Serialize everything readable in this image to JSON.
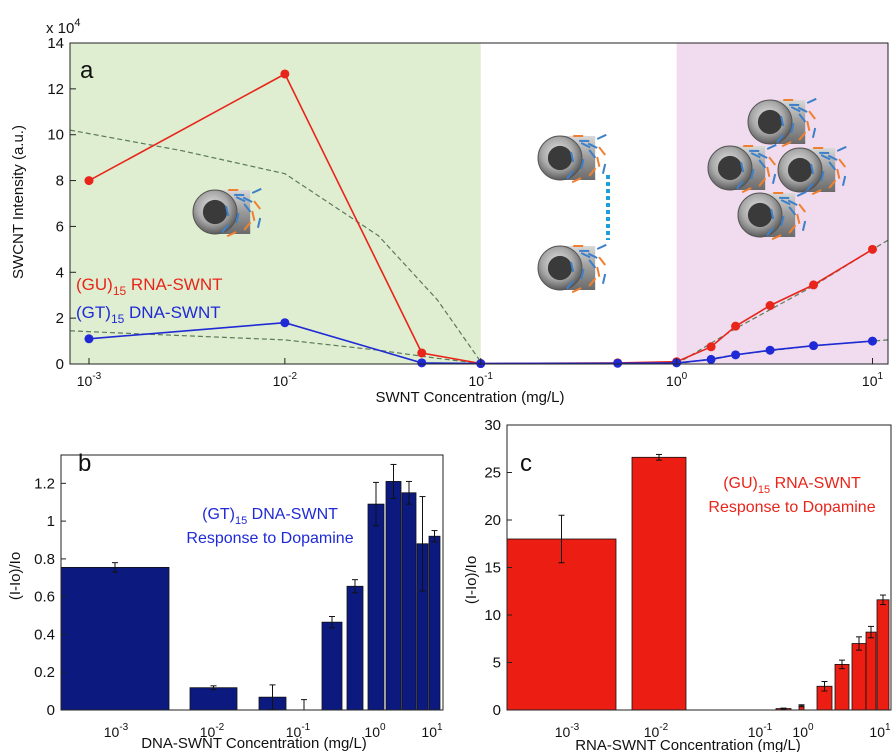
{
  "chart_data": [
    {
      "panel": "a",
      "type": "line",
      "exponent_label": "x 10",
      "exponent_power": "4",
      "xlabel": "SWNT Concentration (mg/L)",
      "ylabel": "SWCNT Intensity (a.u.)",
      "xscale": "log",
      "xlim": [
        0.0008,
        12
      ],
      "ylim": [
        0,
        14
      ],
      "yticks": [
        "0",
        "2",
        "4",
        "6",
        "8",
        "10",
        "12",
        "14"
      ],
      "xticks": [
        {
          "base": "10",
          "exp": "-3",
          "value": 0.001
        },
        {
          "base": "10",
          "exp": "-2",
          "value": 0.01
        },
        {
          "base": "10",
          "exp": "-1",
          "value": 0.1
        },
        {
          "base": "10",
          "exp": "0",
          "value": 1
        },
        {
          "base": "10",
          "exp": "1",
          "value": 10
        }
      ],
      "regions": [
        {
          "from": 0.0008,
          "to": 0.1,
          "color": "#dfeed0"
        },
        {
          "from": 1,
          "to": 12,
          "color": "#f0dcee"
        }
      ],
      "series": [
        {
          "name_main": "(GU)",
          "name_sub": "15",
          "name_rest": " RNA-SWNT",
          "color": "#e8251b",
          "x": [
            0.001,
            0.01,
            0.05,
            0.1,
            0.5,
            1,
            1.5,
            2,
            3,
            5,
            10
          ],
          "y": [
            8.0,
            12.65,
            0.48,
            0.02,
            0.05,
            0.1,
            0.75,
            1.65,
            2.55,
            3.45,
            5.0
          ]
        },
        {
          "name_main": "(GT)",
          "name_sub": "15",
          "name_rest": " DNA-SWNT",
          "color": "#1f2ad6",
          "x": [
            0.001,
            0.01,
            0.05,
            0.1,
            0.5,
            1,
            1.5,
            2,
            3,
            5,
            10
          ],
          "y": [
            1.1,
            1.8,
            0.05,
            0.02,
            0.03,
            0.05,
            0.2,
            0.4,
            0.6,
            0.8,
            1.0
          ]
        }
      ],
      "dashed_curves": [
        {
          "color": "#5c7a5c",
          "x": [
            0.0008,
            0.001,
            0.003,
            0.01,
            0.03,
            0.06,
            0.1
          ],
          "y": [
            10.2,
            10.05,
            9.3,
            8.3,
            5.6,
            2.8,
            0.1
          ]
        },
        {
          "color": "#5c7a5c",
          "x": [
            0.0008,
            0.002,
            0.01,
            0.03,
            0.06,
            0.1
          ],
          "y": [
            1.45,
            1.3,
            1.05,
            0.6,
            0.25,
            0.02
          ]
        },
        {
          "color": "#5c7a5c",
          "x": [
            1,
            2,
            5,
            10,
            12
          ],
          "y": [
            0.0,
            1.55,
            3.4,
            5.0,
            5.4
          ]
        },
        {
          "color": "#5c7a5c",
          "x": [
            1,
            2,
            5,
            10,
            12
          ],
          "y": [
            0.0,
            0.4,
            0.8,
            1.0,
            1.05
          ]
        }
      ]
    },
    {
      "panel": "b",
      "type": "bar",
      "title_main": "(GT)",
      "title_sub": "15",
      "title_rest": " DNA-SWNT",
      "title_line2": "Response to Dopamine",
      "title_color": "#1f2ad6",
      "bar_color": "#0c1a80",
      "xlabel": "DNA-SWNT Concentration (mg/L)",
      "ylabel": "(I-Io)/Io",
      "xscale": "log",
      "ylim": [
        0,
        1.35
      ],
      "yticks": [
        "0",
        "0.2",
        "0.4",
        "0.6",
        "0.8",
        "1",
        "1.2"
      ],
      "xticks": [
        {
          "base": "10",
          "exp": "-3",
          "value": 0.001
        },
        {
          "base": "10",
          "exp": "-2",
          "value": 0.01
        },
        {
          "base": "10",
          "exp": "-1",
          "value": 0.1
        },
        {
          "base": "10",
          "exp": "0",
          "value": 1
        },
        {
          "base": "10",
          "exp": "1",
          "value": 10
        }
      ],
      "x": [
        0.001,
        0.01,
        0.05,
        0.1,
        0.5,
        1,
        1.5,
        2,
        3,
        5,
        10
      ],
      "values": [
        0.755,
        0.118,
        0.068,
        0.0,
        0.465,
        0.655,
        1.09,
        1.21,
        1.15,
        0.88,
        0.92
      ],
      "errors": [
        0.025,
        0.01,
        0.065,
        0.055,
        0.03,
        0.035,
        0.115,
        0.09,
        0.06,
        0.25,
        0.03
      ]
    },
    {
      "panel": "c",
      "type": "bar",
      "title_main": "(GU)",
      "title_sub": "15",
      "title_rest": " RNA-SWNT",
      "title_line2": "Response to Dopamine",
      "title_color": "#e8251b",
      "bar_color": "#ec1e14",
      "xlabel": "RNA-SWNT Concentration (mg/L)",
      "ylabel": "(I-Io)/Io",
      "xscale": "log",
      "ylim": [
        0,
        30
      ],
      "yticks": [
        "0",
        "5",
        "10",
        "15",
        "20",
        "25",
        "30"
      ],
      "xticks": [
        {
          "base": "10",
          "exp": "-3",
          "value": 0.001
        },
        {
          "base": "10",
          "exp": "-2",
          "value": 0.01
        },
        {
          "base": "10",
          "exp": "-1",
          "value": 0.1
        },
        {
          "base": "10",
          "exp": "0",
          "value": 1
        },
        {
          "base": "10",
          "exp": "1",
          "value": 10
        }
      ],
      "x": [
        0.001,
        0.01,
        0.05,
        0.1,
        0.5,
        1,
        1.5,
        2,
        3,
        5,
        10
      ],
      "values": [
        18.0,
        26.6,
        0.0,
        0.0,
        0.15,
        0.45,
        2.5,
        4.8,
        7.0,
        8.2,
        11.6
      ],
      "errors": [
        2.5,
        0.3,
        0.0,
        0.0,
        0.05,
        0.1,
        0.5,
        0.45,
        0.7,
        0.6,
        0.5
      ]
    }
  ]
}
